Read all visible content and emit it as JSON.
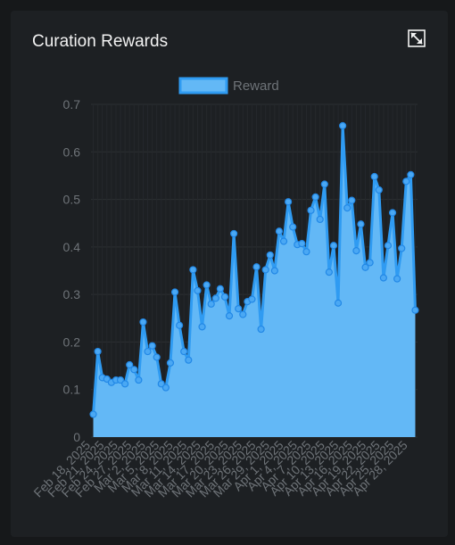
{
  "card": {
    "title": "Curation Rewards",
    "expand_icon": "expand-icon"
  },
  "chart_data": {
    "type": "area",
    "legend": {
      "label": "Reward",
      "position": "top-center"
    },
    "ylim": [
      0,
      0.7
    ],
    "yticks": [
      "0",
      "0.1",
      "0.2",
      "0.3",
      "0.4",
      "0.5",
      "0.6",
      "0.7"
    ],
    "grid": true,
    "x_tick_labels": [
      "Feb 18, 2025",
      "Feb 21, 2025",
      "Feb 24, 2025",
      "Feb 27, 2025",
      "Mar 2, 2025",
      "Mar 5, 2025",
      "Mar 8, 2025",
      "Mar 11, 2025",
      "Mar 14, 2025",
      "Mar 17, 2025",
      "Mar 20, 2025",
      "Mar 23, 2025",
      "Mar 26, 2025",
      "Mar 29, 2025",
      "Apr 1, 2025",
      "Apr 4, 2025",
      "Apr 7, 2025",
      "Apr 10, 2025",
      "Apr 13, 2025",
      "Apr 16, 2025",
      "Apr 19, 2025",
      "Apr 22, 2025",
      "Apr 25, 2025",
      "Apr 28, 2025"
    ],
    "x_start": "2025-02-18",
    "x_end": "2025-04-30",
    "colors": {
      "line": "#2f9bf2",
      "fill": "#63b8f6",
      "point_fill": "#4aa8f4"
    },
    "series": [
      {
        "name": "Reward",
        "values": [
          0.048,
          0.18,
          0.125,
          0.122,
          0.115,
          0.12,
          0.12,
          0.112,
          0.152,
          0.142,
          0.12,
          0.242,
          0.18,
          0.192,
          0.168,
          0.112,
          0.104,
          0.156,
          0.305,
          0.235,
          0.18,
          0.162,
          0.352,
          0.308,
          0.232,
          0.32,
          0.28,
          0.292,
          0.312,
          0.295,
          0.255,
          0.428,
          0.27,
          0.258,
          0.285,
          0.29,
          0.358,
          0.227,
          0.352,
          0.383,
          0.35,
          0.433,
          0.412,
          0.495,
          0.442,
          0.405,
          0.407,
          0.39,
          0.477,
          0.505,
          0.458,
          0.532,
          0.347,
          0.403,
          0.282,
          0.655,
          0.482,
          0.498,
          0.392,
          0.448,
          0.357,
          0.367,
          0.548,
          0.52,
          0.335,
          0.403,
          0.472,
          0.333,
          0.397,
          0.538,
          0.552,
          0.267
        ]
      }
    ]
  }
}
